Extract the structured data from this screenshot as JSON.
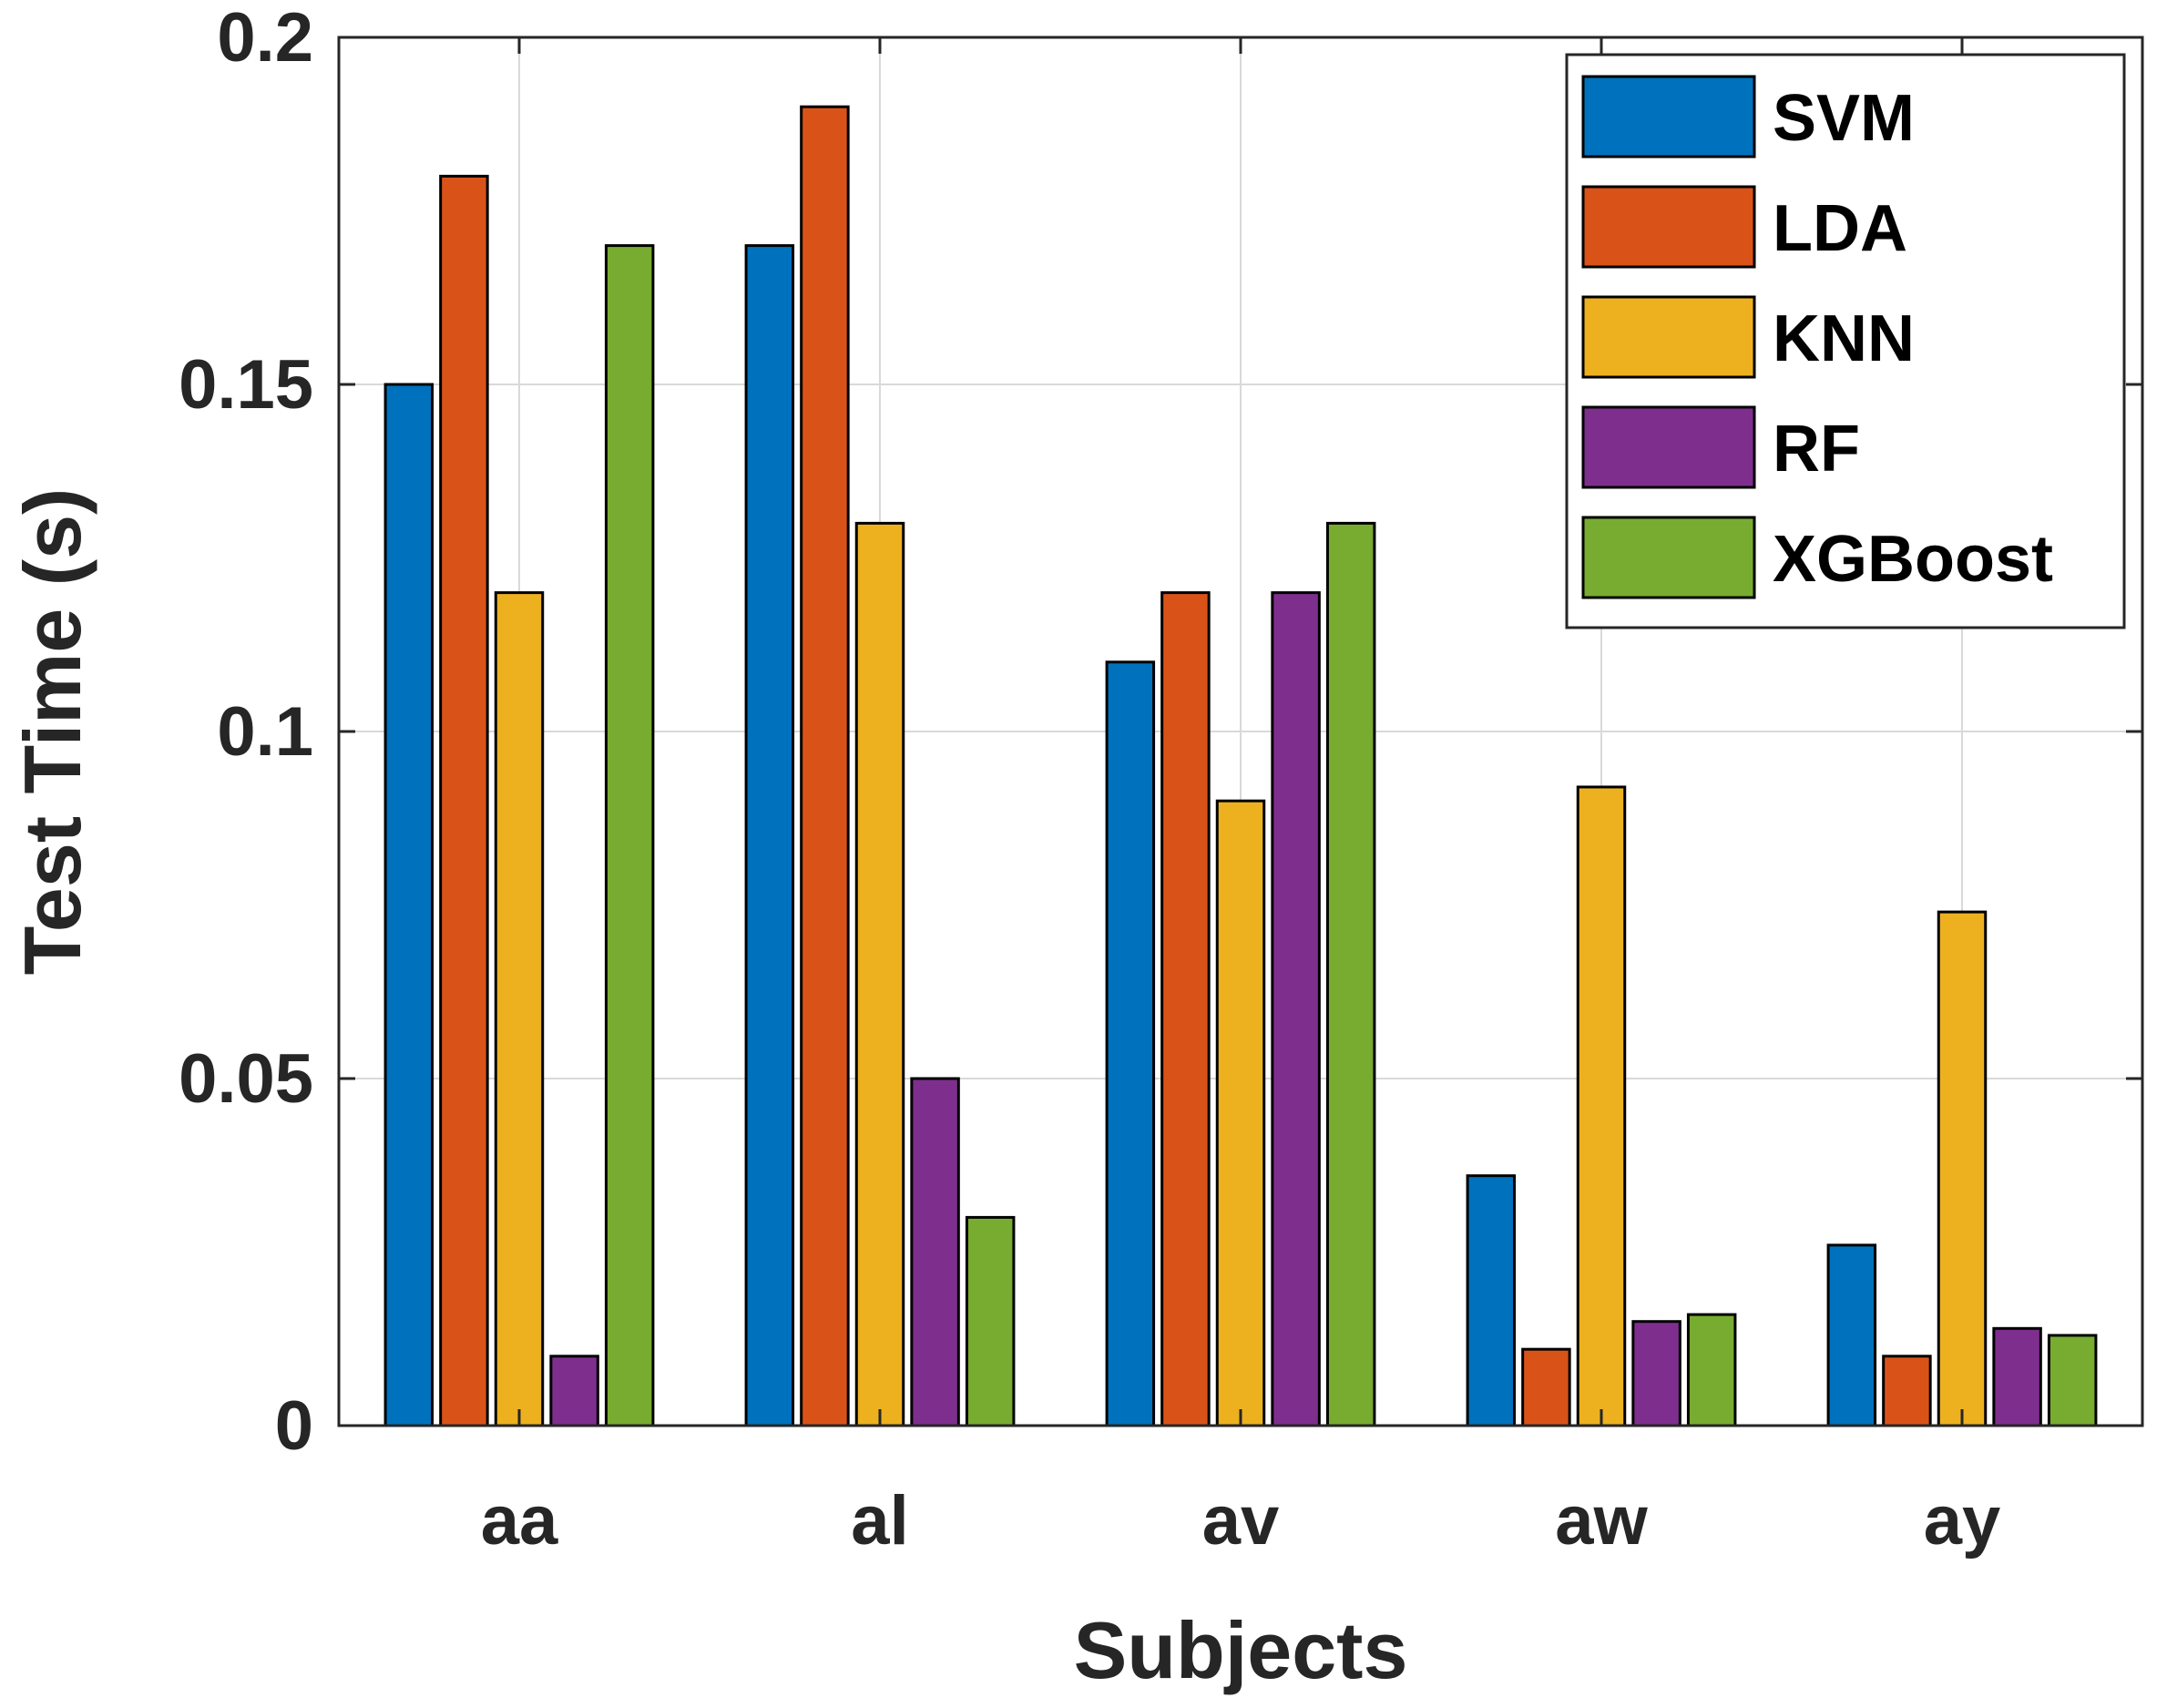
{
  "chart_data": {
    "type": "bar",
    "title": "",
    "xlabel": "Subjects",
    "ylabel": "Test Time (s)",
    "categories": [
      "aa",
      "al",
      "av",
      "aw",
      "ay"
    ],
    "ylim": [
      0,
      0.2
    ],
    "yticks": [
      0,
      0.05,
      0.1,
      0.15,
      0.2
    ],
    "ytick_labels": [
      "0",
      "0.05",
      "0.1",
      "0.15",
      "0.2"
    ],
    "grid": true,
    "legend_position": "top-right",
    "series": [
      {
        "name": "SVM",
        "color": "#0072BD",
        "values": [
          0.15,
          0.17,
          0.11,
          0.036,
          0.026
        ]
      },
      {
        "name": "LDA",
        "color": "#D95319",
        "values": [
          0.18,
          0.19,
          0.12,
          0.011,
          0.01
        ]
      },
      {
        "name": "KNN",
        "color": "#EDB120",
        "values": [
          0.12,
          0.13,
          0.09,
          0.092,
          0.074
        ]
      },
      {
        "name": "RF",
        "color": "#7E2F8E",
        "values": [
          0.01,
          0.05,
          0.12,
          0.015,
          0.014
        ]
      },
      {
        "name": "XGBoost",
        "color": "#77AC30",
        "values": [
          0.17,
          0.03,
          0.13,
          0.016,
          0.013
        ]
      }
    ]
  }
}
